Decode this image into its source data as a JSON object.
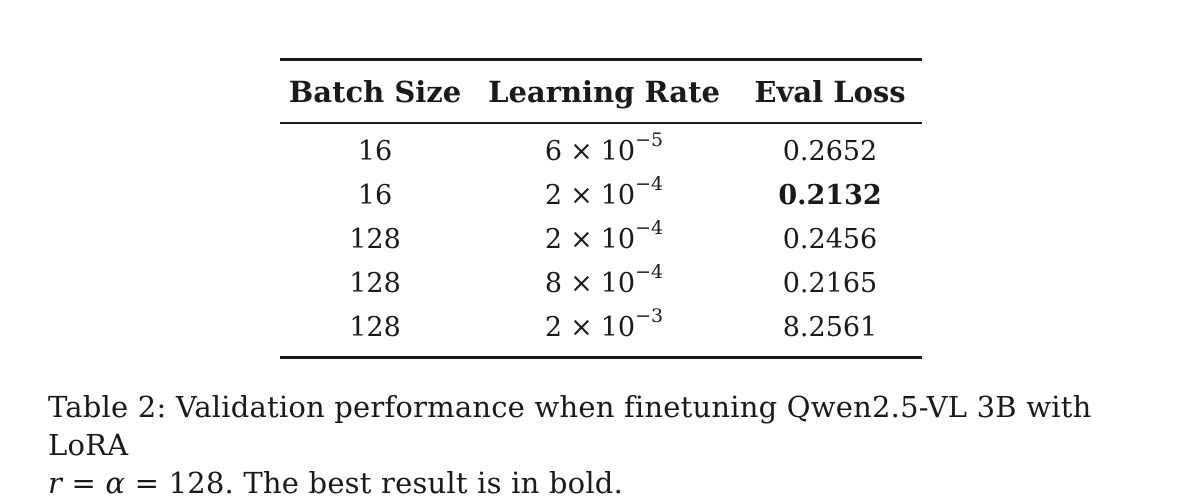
{
  "table": {
    "headers": [
      "Batch Size",
      "Learning Rate",
      "Eval Loss"
    ],
    "rows": [
      {
        "batch_size": "16",
        "lr_mantissa": "6",
        "lr_times": "×",
        "lr_base": "10",
        "lr_exp": "−5",
        "eval_loss": "0.2652",
        "best": false
      },
      {
        "batch_size": "16",
        "lr_mantissa": "2",
        "lr_times": "×",
        "lr_base": "10",
        "lr_exp": "−4",
        "eval_loss": "0.2132",
        "best": true
      },
      {
        "batch_size": "128",
        "lr_mantissa": "2",
        "lr_times": "×",
        "lr_base": "10",
        "lr_exp": "−4",
        "eval_loss": "0.2456",
        "best": false
      },
      {
        "batch_size": "128",
        "lr_mantissa": "8",
        "lr_times": "×",
        "lr_base": "10",
        "lr_exp": "−4",
        "eval_loss": "0.2165",
        "best": false
      },
      {
        "batch_size": "128",
        "lr_mantissa": "2",
        "lr_times": "×",
        "lr_base": "10",
        "lr_exp": "−3",
        "eval_loss": "8.2561",
        "best": false
      }
    ]
  },
  "caption": {
    "line1": "Table 2: Validation performance when finetuning Qwen2.5-VL 3B with LoRA",
    "math_r": "r",
    "math_eq1": " = ",
    "math_alpha": "α",
    "math_eq2": " = ",
    "line2_rest": "128. The best result is in bold."
  }
}
